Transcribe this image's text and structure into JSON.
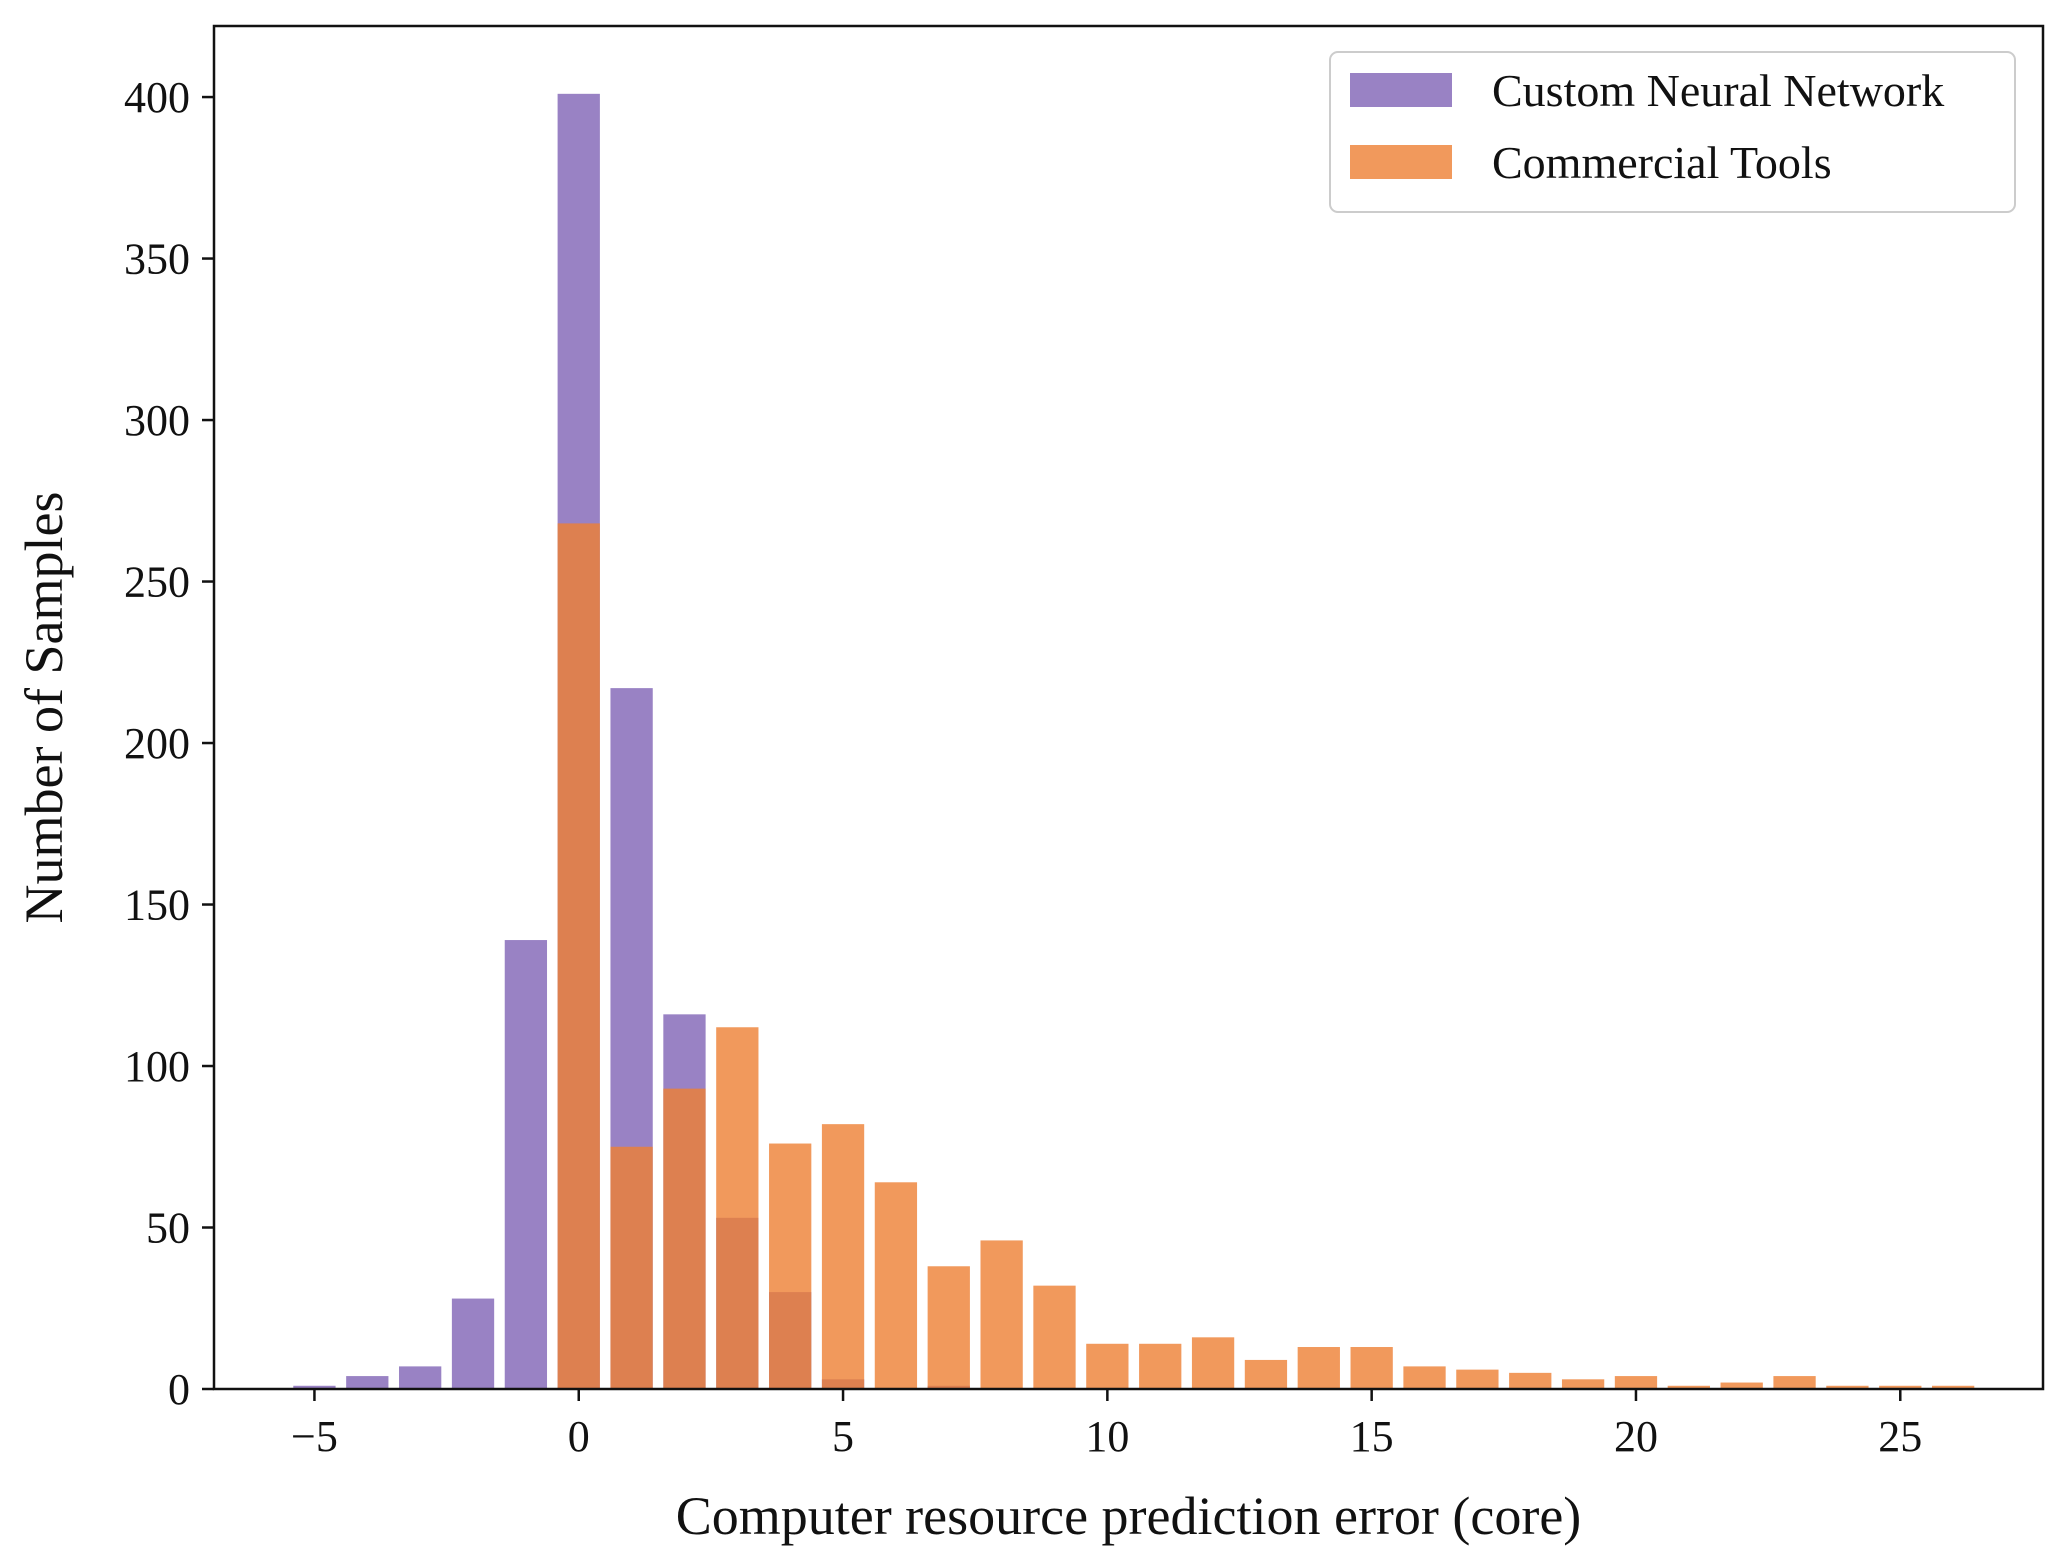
{
  "chart_data": {
    "type": "bar",
    "title": "",
    "xlabel": "Computer resource prediction error (core)",
    "ylabel": "Number of Samples",
    "xlim": [
      -6.9,
      27.7
    ],
    "ylim": [
      0,
      422
    ],
    "xticks": [
      -5,
      0,
      5,
      10,
      15,
      20,
      25
    ],
    "xtick_labels": [
      "−5",
      "0",
      "5",
      "10",
      "15",
      "20",
      "25"
    ],
    "yticks": [
      0,
      50,
      100,
      150,
      200,
      250,
      300,
      350,
      400
    ],
    "ytick_labels": [
      "0",
      "50",
      "100",
      "150",
      "200",
      "250",
      "300",
      "350",
      "400"
    ],
    "grid": false,
    "legend_position": "top-right",
    "series": [
      {
        "name": "Custom Neural Network",
        "color": "#8063b5",
        "opacity": 0.8,
        "x": [
          -5,
          -4,
          -3,
          -2,
          -1,
          0,
          1,
          2,
          3,
          4,
          5,
          6,
          7
        ],
        "values": [
          1,
          4,
          7,
          28,
          139,
          401,
          217,
          116,
          53,
          30,
          3,
          0,
          1
        ]
      },
      {
        "name": "Commercial Tools",
        "color": "#ee8033",
        "opacity": 0.8,
        "x": [
          0,
          1,
          2,
          3,
          4,
          5,
          6,
          7,
          8,
          9,
          10,
          11,
          12,
          13,
          14,
          15,
          16,
          17,
          18,
          19,
          20,
          21,
          22,
          23,
          24,
          25,
          26
        ],
        "values": [
          268,
          75,
          93,
          112,
          76,
          82,
          64,
          38,
          46,
          32,
          14,
          14,
          16,
          9,
          13,
          13,
          7,
          6,
          5,
          3,
          4,
          1,
          2,
          4,
          1,
          1,
          1
        ]
      }
    ]
  }
}
